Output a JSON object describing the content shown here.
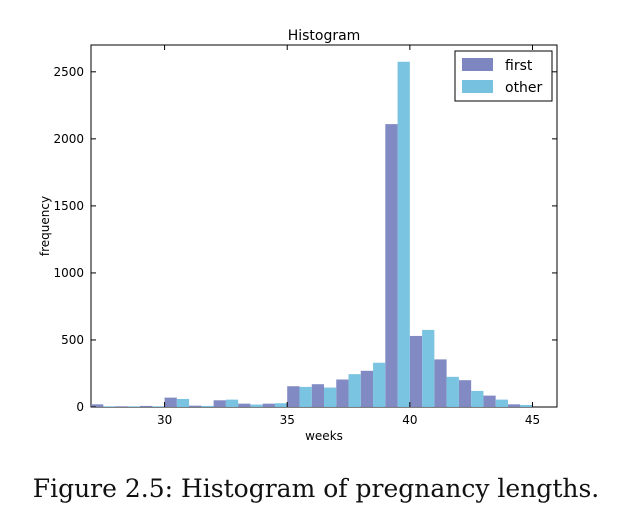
{
  "chart_data": {
    "type": "bar",
    "title": "Histogram",
    "xlabel": "weeks",
    "ylabel": "frequency",
    "xlim": [
      27,
      46
    ],
    "ylim": [
      0,
      2700
    ],
    "xticks": [
      30,
      35,
      40,
      45
    ],
    "yticks": [
      0,
      500,
      1000,
      1500,
      2000,
      2500
    ],
    "legend_position": "top-right",
    "series": [
      {
        "name": "first",
        "color": "#7e86c2",
        "x": [
          27,
          28,
          29,
          30,
          31,
          32,
          33,
          34,
          35,
          36,
          37,
          38,
          39,
          40,
          41,
          42,
          43,
          44
        ],
        "values": [
          20,
          5,
          8,
          70,
          10,
          50,
          25,
          25,
          155,
          170,
          205,
          270,
          2110,
          530,
          355,
          200,
          85,
          20
        ]
      },
      {
        "name": "other",
        "color": "#76c1e0",
        "x": [
          27,
          28,
          29,
          30,
          31,
          32,
          33,
          34,
          35,
          36,
          37,
          38,
          39,
          40,
          41,
          42,
          43,
          44
        ],
        "values": [
          5,
          5,
          5,
          60,
          8,
          55,
          18,
          28,
          150,
          145,
          245,
          330,
          2575,
          575,
          225,
          120,
          55,
          15
        ]
      }
    ]
  },
  "caption": "Figure 2.5: Histogram of pregnancy lengths."
}
